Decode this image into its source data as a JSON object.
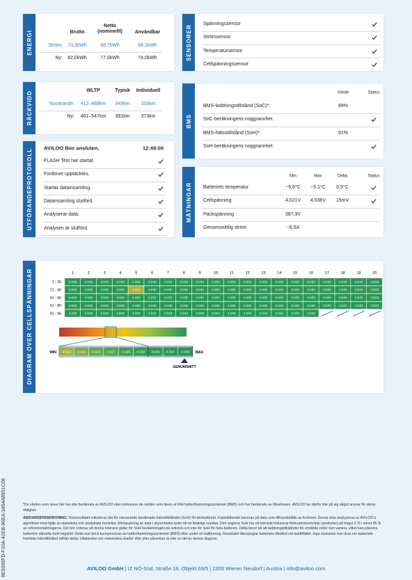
{
  "energy": {
    "title": "ENERGI",
    "headers": [
      "Brutto",
      "Netto (nominellt)",
      "Användbar"
    ],
    "rows": [
      {
        "label": "Ström:",
        "values": [
          "73,2kWh",
          "68,7kWh",
          "66,1kWh"
        ]
      },
      {
        "label": "Ny:",
        "values": [
          "82,0kWh",
          "77,0kWh",
          "74,0kWh"
        ]
      }
    ]
  },
  "sensors": {
    "title": "SENSORER",
    "items": [
      {
        "label": "Spänningssensor",
        "check": true
      },
      {
        "label": "Strömsensor",
        "check": true
      },
      {
        "label": "Temperatursensor",
        "check": true
      },
      {
        "label": "Cellspänningssensor",
        "check": true
      }
    ]
  },
  "range": {
    "title": "RÄCKVIDD",
    "headers": [
      "WLTP",
      "Typisk",
      "Individuell"
    ],
    "rows": [
      {
        "label": "Nuvarande:",
        "values": [
          "412–488km",
          "349km",
          "333km"
        ]
      },
      {
        "label": "Ny:",
        "values": [
          "461–547km",
          "391km",
          "373km"
        ]
      }
    ]
  },
  "bms": {
    "title": "BMS",
    "headers": [
      "Värde",
      "Status"
    ],
    "rows": [
      {
        "label": "BMS-laddningstillstånd (SoC)*:",
        "value": "89%"
      },
      {
        "label": "SoC-beräkningens noggrannhet:",
        "check": true
      },
      {
        "label": "BMS-hälsotillstånd (SoH)*:",
        "value": "91%"
      },
      {
        "label": "SoH-beräkningens noggrannhet:",
        "check": true
      }
    ]
  },
  "protocol": {
    "title": "UTFÖRANDEPROTOKOLL",
    "header": "AVILOO Box ansluten.",
    "time": "12:49:00",
    "steps": [
      {
        "label": "FLASH Test har startat.",
        "check": true
      },
      {
        "label": "Fordonet upptäcktes.",
        "check": true
      },
      {
        "label": "Startar datainsamling.",
        "check": true
      },
      {
        "label": "Datainsamling slutförd.",
        "check": true
      },
      {
        "label": "Analyserar data.",
        "check": true
      },
      {
        "label": "Analysen är slutförd.",
        "check": true
      }
    ]
  },
  "measurements": {
    "title": "MÄTNINGAR",
    "headers": [
      "Min",
      "Max",
      "Delta",
      "Status"
    ],
    "rows": [
      {
        "label": "Batteriets temperatur",
        "values": [
          "−5,6°C",
          "−5,1°C",
          "0,5°C"
        ],
        "check": true
      },
      {
        "label": "Cellspänning",
        "values": [
          "4,021V",
          "4,036V",
          "15mV"
        ],
        "check": true
      },
      {
        "label": "Packspänning",
        "values": [
          "387,3V"
        ]
      },
      {
        "label": "Genomsnittlig ström",
        "values": [
          "−8,5A"
        ]
      }
    ]
  },
  "cells": {
    "title": "DIAGRAM ÖVER CELLSPÄNNINGAR",
    "columns": [
      1,
      2,
      3,
      4,
      5,
      6,
      7,
      8,
      9,
      10,
      11,
      12,
      13,
      14,
      15,
      16,
      17,
      18,
      19,
      20
    ],
    "rows": [
      {
        "label": "1 - 20",
        "values": [
          "4.032",
          "4.035",
          "4.034",
          "4.033",
          "4.034",
          "4.035",
          "4.034",
          "4.034",
          "4.034",
          "4.033",
          "4.033",
          "4.034",
          "4.034",
          "4.033",
          "4.034",
          "4.032",
          "4.034",
          "4.034",
          "4.035",
          "4.035"
        ]
      },
      {
        "label": "21 - 40",
        "values": [
          "4.034",
          "4.033",
          "4.034",
          "4.034",
          "4.021",
          "4.035",
          "4.035",
          "4.034",
          "4.034",
          "4.033",
          "4.034",
          "4.033",
          "4.035",
          "4.034",
          "4.034",
          "4.034",
          "4.034",
          "4.035",
          "4.034",
          "4.032"
        ]
      },
      {
        "label": "41 - 60",
        "values": [
          "4.034",
          "4.036",
          "4.034",
          "4.034",
          "4.034",
          "4.034",
          "4.033",
          "4.035",
          "4.034",
          "4.034",
          "4.036",
          "4.036",
          "4.035",
          "4.034",
          "4.033",
          "4.033",
          "4.034",
          "4.034",
          "4.035",
          "4.033"
        ]
      },
      {
        "label": "61 - 80",
        "values": [
          "4.034",
          "4.033",
          "4.034",
          "4.032",
          "4.035",
          "4.036",
          "4.036",
          "4.036",
          "4.036",
          "4.035",
          "4.036",
          "4.034",
          "4.035",
          "4.034",
          "4.033",
          "4.035",
          "4.036",
          "4.034",
          "4.033",
          "4.033"
        ]
      },
      {
        "label": "81 - 96",
        "values": [
          "4.034",
          "4.033",
          "4.034",
          "4.034",
          "4.035",
          "4.034",
          "4.033",
          "4.034",
          "4.035",
          "4.034",
          "4.035",
          "4.035",
          "4.034",
          "4.034",
          "4.033",
          "4.033"
        ]
      }
    ],
    "scale": {
      "min_label": "MIN",
      "max_label": "MAX",
      "average_label": "GENOMSNITT",
      "values": [
        "4.021",
        "4.023",
        "4.025",
        "4.027",
        "4.028",
        "4.030",
        "4.032",
        "4.034",
        "4.036"
      ],
      "colors": [
        "#a8b43a",
        "#86ad3f",
        "#6aa845",
        "#55a44a",
        "#45a04e",
        "#3a9c51",
        "#2f9a56",
        "#2c9858",
        "#2a965a"
      ]
    }
  },
  "document_id": "8E5095FD-F10A-42EB-96EA-3454A8951C06",
  "footnote": "*De värden som visas här har inte beräknats av AVILOO utan motsvarar de värden som läses ut från batterihanteringssystemet (BMS) och har beräknats av tillverkaren. AVILOO tar därför inte på sig något ansvar för deras riktighet.",
  "disclaimer": {
    "label": "ANSVARSFRISKRIVNING:",
    "text": "Testresultatet inkluderar det för närvarande beräknade hälsotillståndet (SoH) för drivbatteriet. Fastställandet baseras på data som tillhandahålls av fordonet. Dessa data analyseras av AVILOO:s algoritmer med hjälp av statistiska och analytiska modeller. Manipulering av data i styrenheten leder till ett felaktigt resultat. Den angivna SoH har ett tekniskt inducerat fluktuationsområde (avvikelse) på högst 3 % i minst 95 % av referensmätningarna. Det bör noteras att denna tolerans gäller för SoH-bestämningen på cellnivå och inte för SoH för hela batteriet. Detta beror på att laddningstillståndet för enskilda celler kan variera, vilket kan påverka batteriets aktuella SoH negativt. Detta kan dock kompenseras av batterihanteringssystemet (BMS) eller under en kalibrering. Resultatet återspeglar batteriets tillstånd vid testtillfället. Inga slutsatser kan dras om batteriets framtida hälsotillstånd utifrån detta. Uttalanden om mekaniska skador eller yttre påverkan är inte en del av denna diagnos."
  },
  "footer": {
    "company": "AVILOO GmbH",
    "address": "| IZ NÖ-Süd, Straße 16, Objekt 69/5 | 2355 Wiener Neudorf | Austria | info@aviloo.com"
  }
}
